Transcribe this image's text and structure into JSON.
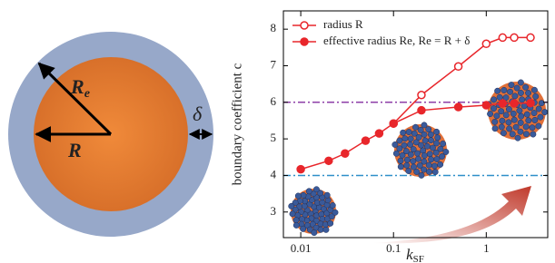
{
  "diagram": {
    "outer_label": "R",
    "outer_label_subscript": "e",
    "inner_label": "R",
    "shell_label": "δ"
  },
  "chart_data": {
    "type": "line",
    "ylabel": "boundary coefficient c",
    "xlabel": "k",
    "xlabel_subscript": "SF",
    "xscale": "log",
    "xlim": [
      0.0065,
      4.6
    ],
    "xticks": [
      0.01,
      0.1,
      1
    ],
    "ylim": [
      2.3,
      8.5
    ],
    "yticks": [
      3,
      4,
      5,
      6,
      7,
      8
    ],
    "legend": "upper left",
    "hlines": [
      {
        "value": 6,
        "color": "#8e3fa8"
      },
      {
        "value": 4,
        "color": "#2f8fc9"
      }
    ],
    "series": [
      {
        "name": "radius R",
        "color": "#e8262b",
        "marker": "open",
        "x": [
          0.1,
          0.2,
          0.5,
          1,
          1.5,
          2,
          3
        ],
        "values": [
          5.42,
          6.2,
          6.98,
          7.6,
          7.77,
          7.77,
          7.77
        ]
      },
      {
        "name": "effective radius Re, Re = R + δ",
        "color": "#e8262b",
        "marker": "filled",
        "x": [
          0.01,
          0.02,
          0.03,
          0.05,
          0.07,
          0.1,
          0.2,
          0.5,
          1,
          1.5,
          2,
          3
        ],
        "values": [
          4.17,
          4.4,
          4.6,
          4.95,
          5.15,
          5.42,
          5.78,
          5.87,
          5.92,
          5.97,
          5.97,
          5.98
        ]
      }
    ]
  }
}
